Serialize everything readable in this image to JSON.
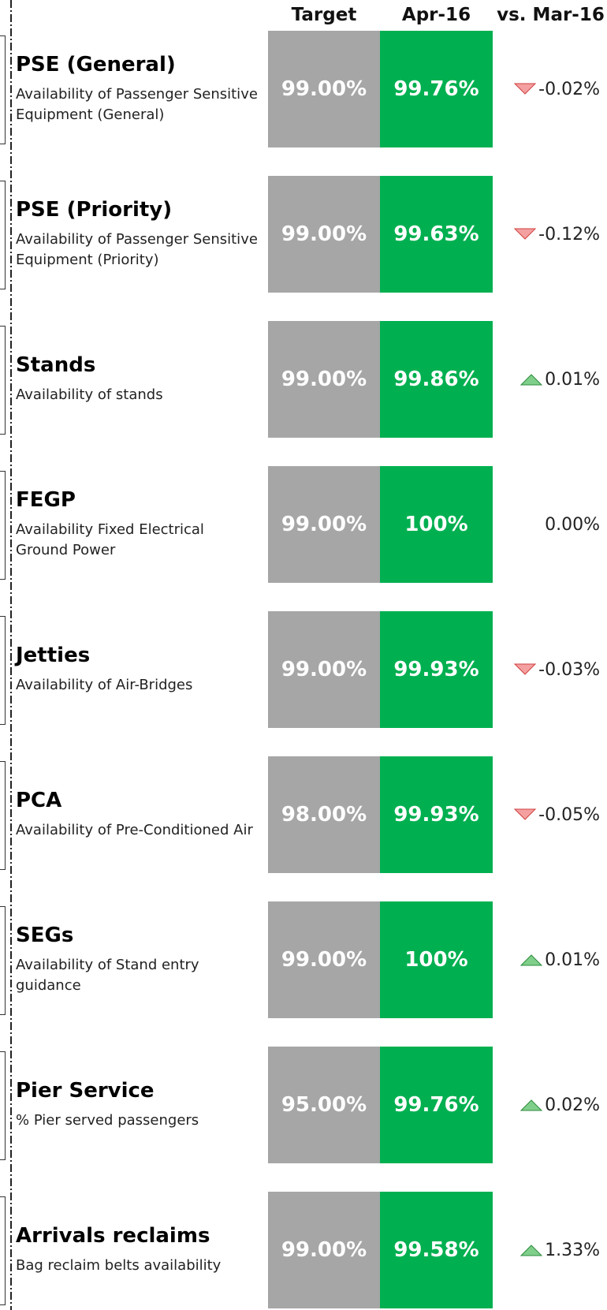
{
  "header": [
    "Target",
    "Apr-16",
    "vs. Mar-16"
  ],
  "rows": [
    {
      "title": "PSE (General)",
      "description": "Availability of Passenger Sensitive Equipment (General)",
      "target": "99.00%",
      "actual": "99.76%",
      "change": "-0.02%",
      "trend": "down"
    },
    {
      "title": "PSE (Priority)",
      "description": "Availability of Passenger Sensitive Equipment (Priority)",
      "target": "99.00%",
      "actual": "99.63%",
      "change": "-0.12%",
      "trend": "down"
    },
    {
      "title": "Stands",
      "description": "Availability of stands",
      "target": "99.00%",
      "actual": "99.86%",
      "change": "0.01%",
      "trend": "up"
    },
    {
      "title": "FEGP",
      "description": "Availability Fixed Electrical Ground Power",
      "target": "99.00%",
      "actual": "100%",
      "change": "0.00%",
      "trend": "none"
    },
    {
      "title": "Jetties",
      "description": "Availability of Air-Bridges",
      "target": "99.00%",
      "actual": "99.93%",
      "change": "-0.03%",
      "trend": "down"
    },
    {
      "title": "PCA",
      "description": "Availability of Pre-Conditioned Air",
      "target": "98.00%",
      "actual": "99.93%",
      "change": "-0.05%",
      "trend": "down"
    },
    {
      "title": "SEGs",
      "description": "Availability of Stand entry guidance",
      "target": "99.00%",
      "actual": "100%",
      "change": "0.01%",
      "trend": "up"
    },
    {
      "title": "Pier Service",
      "description": "% Pier served passengers",
      "target": "95.00%",
      "actual": "99.76%",
      "change": "0.02%",
      "trend": "up"
    },
    {
      "title": "Arrivals reclaims",
      "description": "Bag reclaim belts availability",
      "target": "99.00%",
      "actual": "99.58%",
      "change": "1.33%",
      "trend": "up"
    }
  ]
}
